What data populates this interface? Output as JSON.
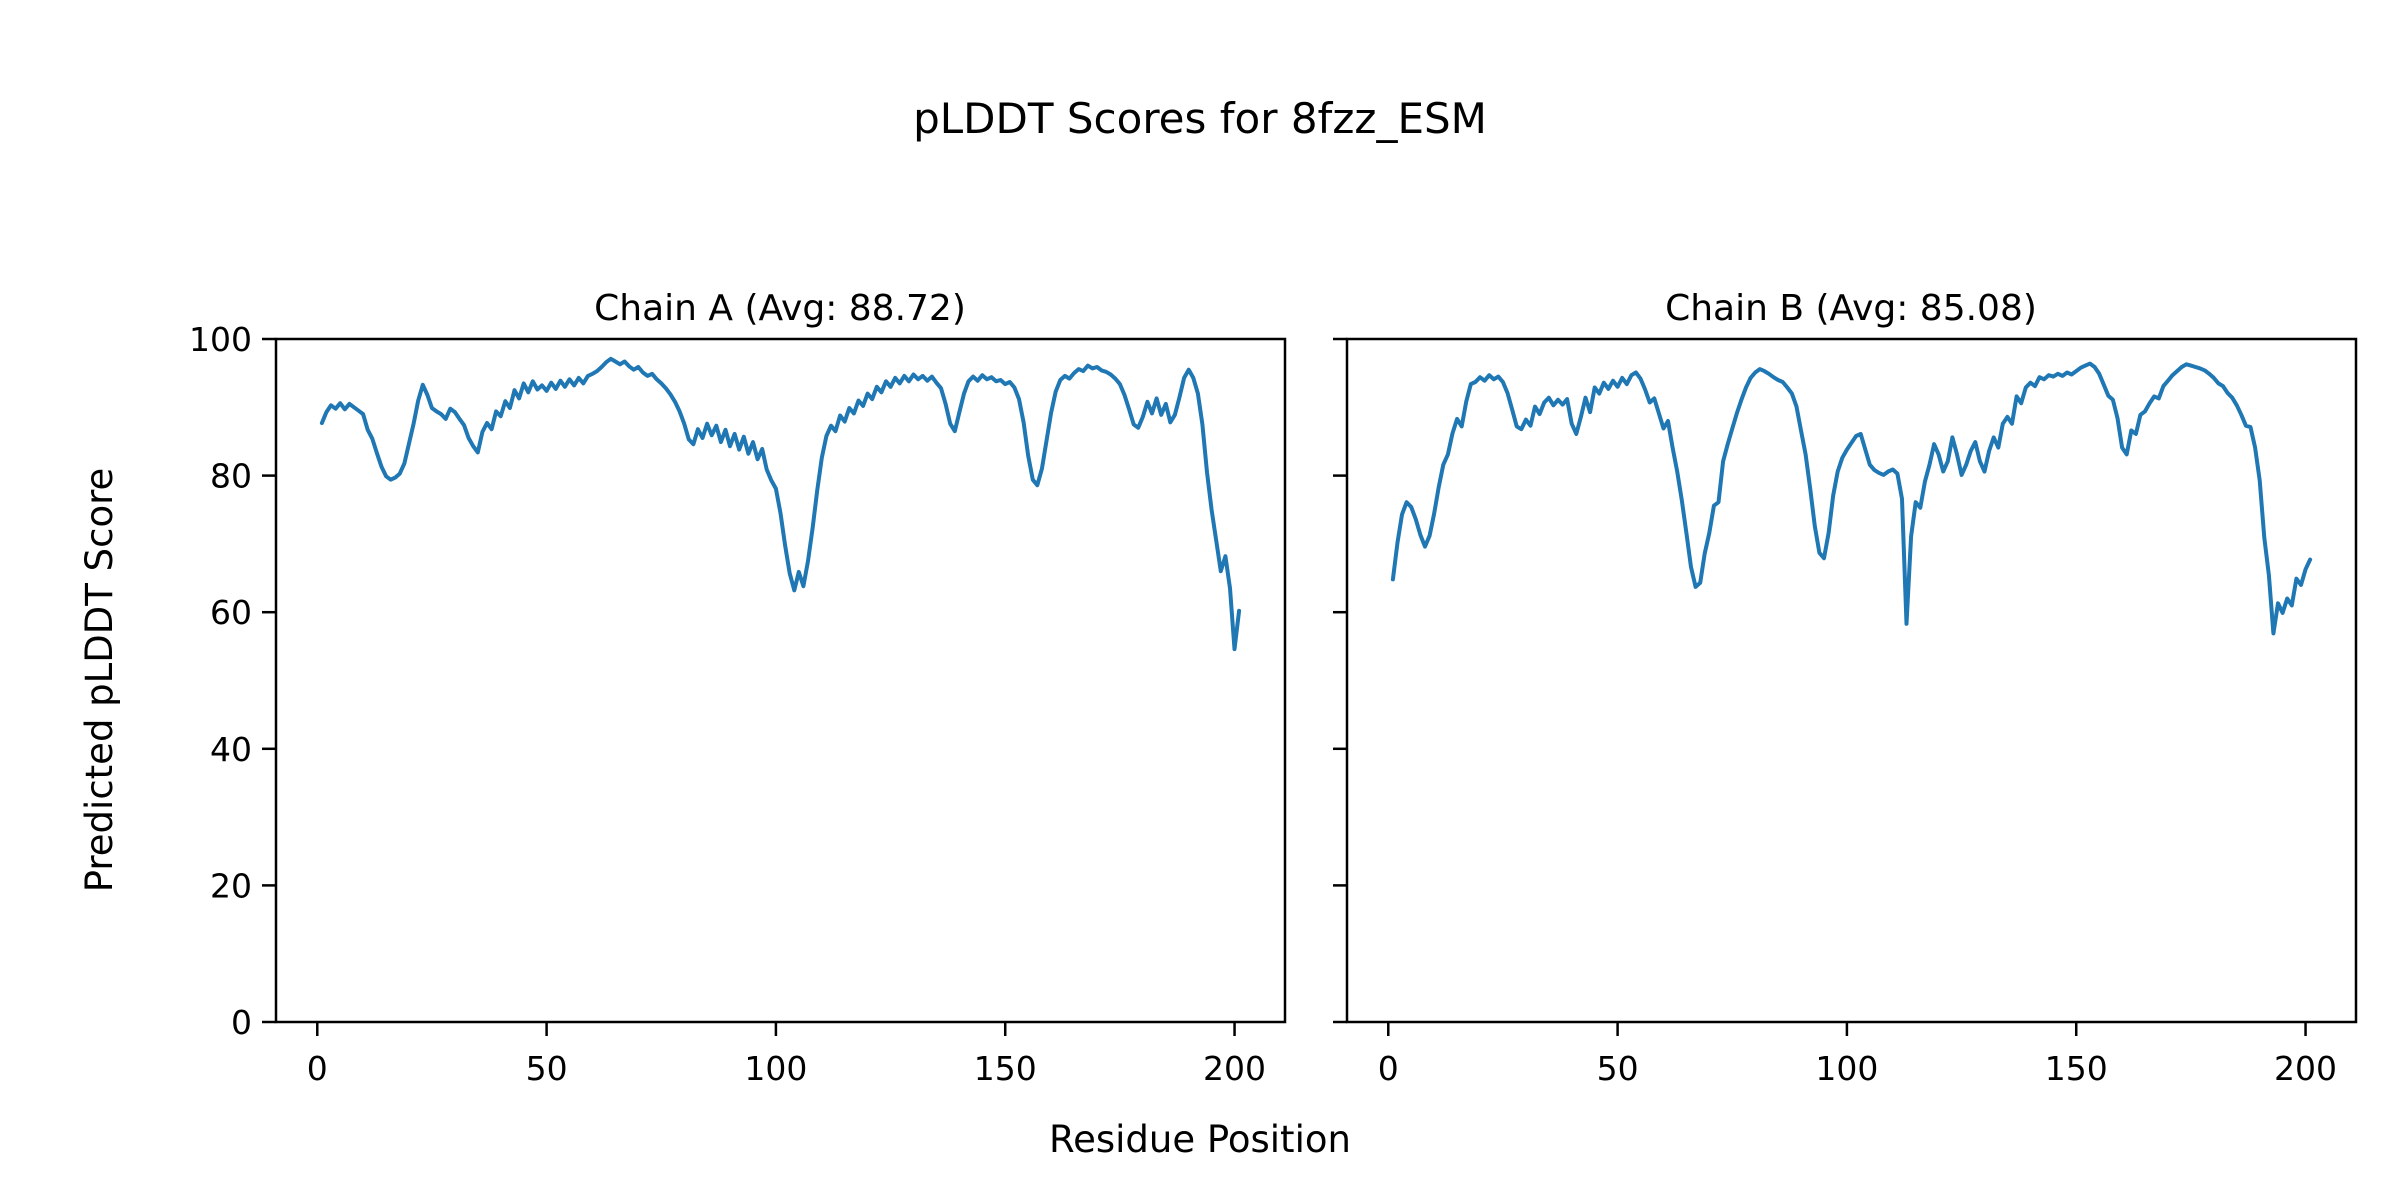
{
  "figure": {
    "title": "pLDDT Scores for 8fzz_ESM",
    "background": "#ffffff"
  },
  "chart_data": {
    "type": "line",
    "title": "pLDDT Scores for 8fzz_ESM",
    "xlabel": "Residue Position",
    "ylabel": "Predicted pLDDT Score",
    "line_color": "#1f77b4",
    "grid": false,
    "legend": "none",
    "xlim": [
      -9,
      211
    ],
    "ylim": [
      0,
      100
    ],
    "xticks": [
      0,
      50,
      100,
      150,
      200
    ],
    "yticks": [
      0,
      20,
      40,
      60,
      80,
      100
    ],
    "subplots": [
      {
        "id": "chain-a",
        "title": "Chain A (Avg: 88.72)",
        "avg": 88.72,
        "x_start": 1,
        "values": [
          87.7,
          89.3,
          90.3,
          89.8,
          90.6,
          89.7,
          90.5,
          90.0,
          89.5,
          89.0,
          86.7,
          85.4,
          83.3,
          81.3,
          79.9,
          79.4,
          79.7,
          80.3,
          81.8,
          84.7,
          87.6,
          91.0,
          93.3,
          91.8,
          89.9,
          89.4,
          89.0,
          88.3,
          89.8,
          89.3,
          88.3,
          87.4,
          85.5,
          84.3,
          83.4,
          86.4,
          87.7,
          86.8,
          89.4,
          88.7,
          90.9,
          89.9,
          92.5,
          91.3,
          93.5,
          92.2,
          93.8,
          92.6,
          93.2,
          92.4,
          93.6,
          92.7,
          93.9,
          93.0,
          94.1,
          93.2,
          94.3,
          93.5,
          94.6,
          94.9,
          95.3,
          95.9,
          96.6,
          97.1,
          96.7,
          96.3,
          96.7,
          96.0,
          95.5,
          95.9,
          95.1,
          94.6,
          94.9,
          94.1,
          93.5,
          92.8,
          91.9,
          90.8,
          89.4,
          87.6,
          85.3,
          84.6,
          86.8,
          85.5,
          87.6,
          85.9,
          87.3,
          84.9,
          86.7,
          84.3,
          86.1,
          83.8,
          85.7,
          83.2,
          84.9,
          82.4,
          83.9,
          80.9,
          79.3,
          78.1,
          74.5,
          69.8,
          65.7,
          63.2,
          65.9,
          63.8,
          67.5,
          72.3,
          77.8,
          82.6,
          85.8,
          87.3,
          86.5,
          88.8,
          87.9,
          89.9,
          89.1,
          91.0,
          90.2,
          92.0,
          91.2,
          93.0,
          92.2,
          93.8,
          93.0,
          94.3,
          93.5,
          94.6,
          93.8,
          94.8,
          94.1,
          94.6,
          93.9,
          94.5,
          93.6,
          92.8,
          90.5,
          87.6,
          86.5,
          89.3,
          92.0,
          93.8,
          94.5,
          93.9,
          94.7,
          94.1,
          94.4,
          93.8,
          94.0,
          93.4,
          93.7,
          92.9,
          91.2,
          87.8,
          82.9,
          79.4,
          78.6,
          81.0,
          85.1,
          89.2,
          92.3,
          94.0,
          94.6,
          94.2,
          95.0,
          95.6,
          95.3,
          96.1,
          95.7,
          95.9,
          95.4,
          95.2,
          94.8,
          94.2,
          93.4,
          91.8,
          89.7,
          87.5,
          87.0,
          88.6,
          90.8,
          89.1,
          91.3,
          88.9,
          90.5,
          87.8,
          88.9,
          91.5,
          94.3,
          95.5,
          94.3,
          92.0,
          87.5,
          80.5,
          75.0,
          70.5,
          66.0,
          68.2,
          63.5,
          54.6,
          60.2
        ]
      },
      {
        "id": "chain-b",
        "title": "Chain B (Avg: 85.08)",
        "avg": 85.08,
        "x_start": 1,
        "values": [
          64.8,
          70.2,
          74.3,
          76.1,
          75.4,
          73.6,
          71.3,
          69.6,
          71.2,
          74.4,
          78.3,
          81.6,
          83.1,
          86.2,
          88.3,
          87.2,
          90.8,
          93.4,
          93.7,
          94.4,
          93.9,
          94.7,
          94.1,
          94.5,
          93.7,
          92.1,
          89.7,
          87.2,
          86.8,
          88.2,
          87.3,
          90.1,
          89.0,
          90.7,
          91.4,
          90.3,
          91.1,
          90.4,
          91.2,
          87.6,
          86.1,
          88.6,
          91.4,
          89.3,
          92.9,
          92.0,
          93.6,
          92.7,
          93.9,
          93.0,
          94.3,
          93.4,
          94.7,
          95.1,
          94.2,
          92.6,
          90.7,
          91.3,
          89.1,
          86.9,
          88.0,
          84.1,
          80.6,
          76.4,
          71.6,
          66.6,
          63.7,
          64.3,
          68.6,
          71.6,
          75.6,
          76.1,
          82.1,
          84.6,
          86.9,
          89.1,
          91.1,
          92.9,
          94.3,
          95.1,
          95.6,
          95.3,
          94.9,
          94.4,
          94.0,
          93.7,
          92.9,
          92.0,
          90.1,
          86.6,
          83.1,
          78.1,
          72.6,
          68.7,
          67.9,
          71.6,
          77.1,
          80.6,
          82.6,
          83.8,
          84.8,
          85.8,
          86.1,
          83.8,
          81.6,
          80.8,
          80.4,
          80.1,
          80.6,
          80.9,
          80.3,
          76.6,
          58.3,
          71.1,
          76.1,
          75.3,
          79.1,
          81.6,
          84.6,
          83.1,
          80.6,
          82.1,
          85.6,
          83.1,
          80.1,
          81.6,
          83.6,
          84.9,
          82.1,
          80.6,
          83.6,
          85.6,
          84.1,
          87.6,
          88.6,
          87.6,
          91.6,
          90.6,
          92.9,
          93.6,
          93.1,
          94.4,
          94.1,
          94.7,
          94.5,
          94.9,
          94.6,
          95.1,
          94.8,
          95.3,
          95.8,
          96.1,
          96.4,
          95.9,
          94.9,
          93.3,
          91.7,
          91.1,
          88.4,
          84.1,
          83.1,
          86.6,
          86.1,
          88.9,
          89.4,
          90.6,
          91.6,
          91.3,
          93.1,
          93.9,
          94.7,
          95.3,
          95.9,
          96.3,
          96.1,
          95.9,
          95.7,
          95.4,
          94.9,
          94.3,
          93.5,
          93.1,
          92.1,
          91.4,
          90.3,
          88.9,
          87.3,
          87.1,
          84.1,
          79.3,
          70.9,
          65.4,
          56.9,
          61.3,
          59.9,
          62.0,
          61.0,
          64.9,
          64.0,
          66.3,
          67.7
        ]
      }
    ]
  }
}
